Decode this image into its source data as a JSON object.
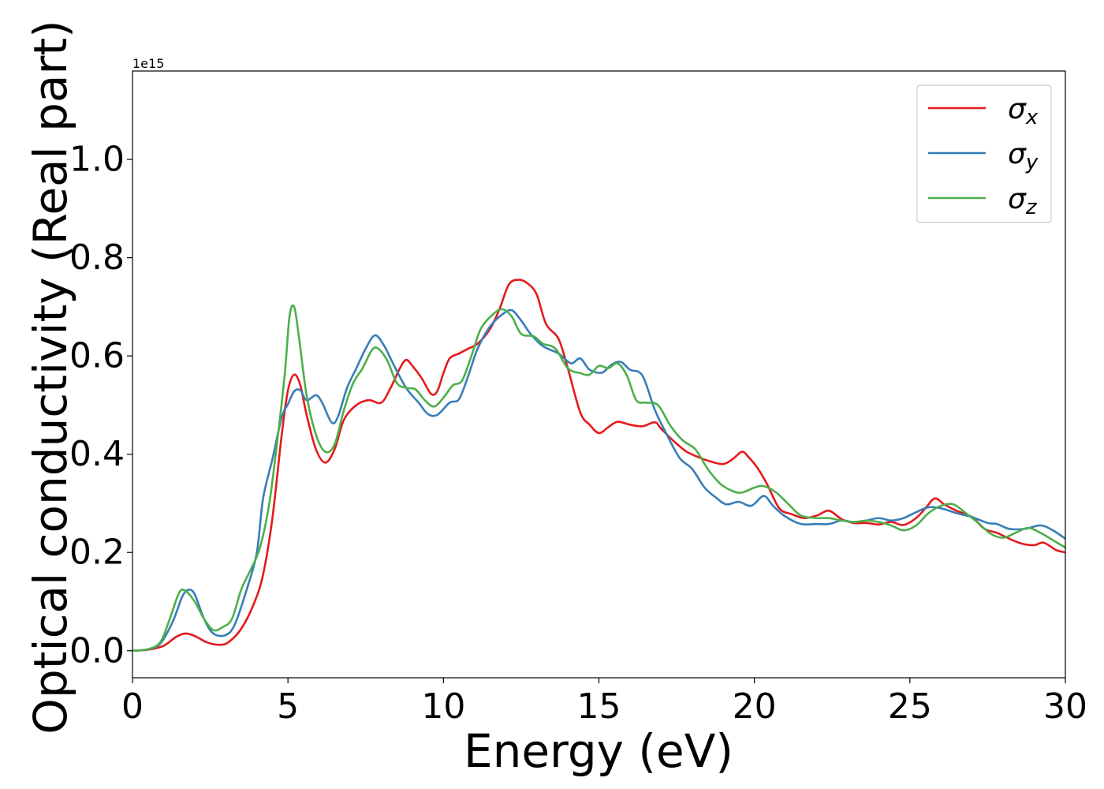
{
  "chart_data": {
    "type": "line",
    "xlabel": "Energy (eV)",
    "ylabel": "Optical conductivity (Real part)",
    "y_offset_text": "1e15",
    "xlim": [
      0,
      30
    ],
    "ylim": [
      -0.055,
      1.18
    ],
    "x_ticks": [
      0,
      5,
      10,
      15,
      20,
      25,
      30
    ],
    "x_tick_labels": [
      "0",
      "5",
      "10",
      "15",
      "20",
      "25",
      "30"
    ],
    "y_ticks": [
      0.0,
      0.2,
      0.4,
      0.6,
      0.8,
      1.0
    ],
    "y_tick_labels": [
      "0.0",
      "0.2",
      "0.4",
      "0.6",
      "0.8",
      "1.0"
    ],
    "grid": false,
    "legend_position": "top-right",
    "series": [
      {
        "name": "σx",
        "symbol": "σ",
        "subscript": "x",
        "color": "#e41a1c",
        "points": [
          [
            0,
            0
          ],
          [
            0.5,
            0.002
          ],
          [
            1.0,
            0.01
          ],
          [
            1.4,
            0.028
          ],
          [
            1.7,
            0.035
          ],
          [
            2.0,
            0.03
          ],
          [
            2.4,
            0.017
          ],
          [
            2.8,
            0.012
          ],
          [
            3.1,
            0.018
          ],
          [
            3.5,
            0.045
          ],
          [
            3.9,
            0.095
          ],
          [
            4.2,
            0.155
          ],
          [
            4.5,
            0.27
          ],
          [
            4.8,
            0.44
          ],
          [
            5.0,
            0.53
          ],
          [
            5.2,
            0.562
          ],
          [
            5.4,
            0.54
          ],
          [
            5.6,
            0.48
          ],
          [
            5.9,
            0.41
          ],
          [
            6.2,
            0.383
          ],
          [
            6.5,
            0.41
          ],
          [
            6.8,
            0.47
          ],
          [
            7.2,
            0.5
          ],
          [
            7.6,
            0.51
          ],
          [
            8.0,
            0.505
          ],
          [
            8.3,
            0.535
          ],
          [
            8.6,
            0.575
          ],
          [
            8.8,
            0.592
          ],
          [
            9.0,
            0.58
          ],
          [
            9.3,
            0.555
          ],
          [
            9.6,
            0.523
          ],
          [
            9.8,
            0.528
          ],
          [
            10.0,
            0.565
          ],
          [
            10.2,
            0.595
          ],
          [
            10.5,
            0.605
          ],
          [
            10.8,
            0.615
          ],
          [
            11.1,
            0.625
          ],
          [
            11.5,
            0.655
          ],
          [
            11.8,
            0.695
          ],
          [
            12.1,
            0.745
          ],
          [
            12.4,
            0.755
          ],
          [
            12.7,
            0.748
          ],
          [
            13.0,
            0.725
          ],
          [
            13.3,
            0.665
          ],
          [
            13.7,
            0.635
          ],
          [
            14.0,
            0.575
          ],
          [
            14.4,
            0.485
          ],
          [
            14.7,
            0.46
          ],
          [
            15.0,
            0.443
          ],
          [
            15.3,
            0.455
          ],
          [
            15.6,
            0.466
          ],
          [
            16.0,
            0.46
          ],
          [
            16.4,
            0.457
          ],
          [
            16.8,
            0.465
          ],
          [
            17.0,
            0.452
          ],
          [
            17.4,
            0.427
          ],
          [
            17.8,
            0.406
          ],
          [
            18.2,
            0.394
          ],
          [
            18.6,
            0.385
          ],
          [
            19.0,
            0.38
          ],
          [
            19.3,
            0.39
          ],
          [
            19.6,
            0.405
          ],
          [
            19.8,
            0.395
          ],
          [
            20.1,
            0.372
          ],
          [
            20.4,
            0.34
          ],
          [
            20.8,
            0.29
          ],
          [
            21.2,
            0.278
          ],
          [
            21.6,
            0.27
          ],
          [
            22.0,
            0.275
          ],
          [
            22.4,
            0.285
          ],
          [
            22.8,
            0.268
          ],
          [
            23.2,
            0.26
          ],
          [
            23.6,
            0.26
          ],
          [
            24.0,
            0.257
          ],
          [
            24.4,
            0.262
          ],
          [
            24.8,
            0.256
          ],
          [
            25.2,
            0.27
          ],
          [
            25.5,
            0.29
          ],
          [
            25.8,
            0.31
          ],
          [
            26.1,
            0.298
          ],
          [
            26.5,
            0.285
          ],
          [
            27.0,
            0.272
          ],
          [
            27.4,
            0.248
          ],
          [
            27.8,
            0.24
          ],
          [
            28.2,
            0.228
          ],
          [
            28.6,
            0.218
          ],
          [
            29.0,
            0.215
          ],
          [
            29.3,
            0.22
          ],
          [
            29.7,
            0.205
          ],
          [
            30.0,
            0.2
          ]
        ]
      },
      {
        "name": "σy",
        "symbol": "σ",
        "subscript": "y",
        "color": "#377eb8",
        "points": [
          [
            0,
            0
          ],
          [
            0.5,
            0.003
          ],
          [
            0.9,
            0.015
          ],
          [
            1.3,
            0.06
          ],
          [
            1.6,
            0.11
          ],
          [
            1.8,
            0.124
          ],
          [
            2.0,
            0.115
          ],
          [
            2.3,
            0.065
          ],
          [
            2.6,
            0.035
          ],
          [
            3.0,
            0.032
          ],
          [
            3.3,
            0.055
          ],
          [
            3.7,
            0.13
          ],
          [
            4.0,
            0.2
          ],
          [
            4.2,
            0.31
          ],
          [
            4.5,
            0.39
          ],
          [
            4.8,
            0.475
          ],
          [
            5.0,
            0.502
          ],
          [
            5.2,
            0.528
          ],
          [
            5.4,
            0.53
          ],
          [
            5.6,
            0.51
          ],
          [
            5.9,
            0.52
          ],
          [
            6.1,
            0.505
          ],
          [
            6.4,
            0.465
          ],
          [
            6.6,
            0.475
          ],
          [
            6.9,
            0.535
          ],
          [
            7.2,
            0.575
          ],
          [
            7.5,
            0.615
          ],
          [
            7.8,
            0.642
          ],
          [
            8.1,
            0.62
          ],
          [
            8.4,
            0.582
          ],
          [
            8.8,
            0.535
          ],
          [
            9.2,
            0.505
          ],
          [
            9.5,
            0.482
          ],
          [
            9.8,
            0.48
          ],
          [
            10.2,
            0.505
          ],
          [
            10.5,
            0.512
          ],
          [
            10.8,
            0.56
          ],
          [
            11.1,
            0.615
          ],
          [
            11.5,
            0.66
          ],
          [
            11.9,
            0.685
          ],
          [
            12.2,
            0.693
          ],
          [
            12.5,
            0.672
          ],
          [
            12.8,
            0.645
          ],
          [
            13.2,
            0.62
          ],
          [
            13.7,
            0.605
          ],
          [
            14.1,
            0.585
          ],
          [
            14.4,
            0.595
          ],
          [
            14.7,
            0.572
          ],
          [
            15.1,
            0.566
          ],
          [
            15.4,
            0.582
          ],
          [
            15.7,
            0.588
          ],
          [
            16.0,
            0.572
          ],
          [
            16.4,
            0.56
          ],
          [
            16.8,
            0.49
          ],
          [
            17.2,
            0.438
          ],
          [
            17.6,
            0.392
          ],
          [
            18.0,
            0.37
          ],
          [
            18.4,
            0.332
          ],
          [
            18.8,
            0.31
          ],
          [
            19.1,
            0.298
          ],
          [
            19.5,
            0.303
          ],
          [
            19.9,
            0.295
          ],
          [
            20.3,
            0.315
          ],
          [
            20.6,
            0.295
          ],
          [
            21.0,
            0.273
          ],
          [
            21.5,
            0.258
          ],
          [
            22.0,
            0.258
          ],
          [
            22.4,
            0.258
          ],
          [
            22.8,
            0.265
          ],
          [
            23.2,
            0.262
          ],
          [
            23.6,
            0.265
          ],
          [
            24.0,
            0.27
          ],
          [
            24.4,
            0.265
          ],
          [
            24.8,
            0.27
          ],
          [
            25.2,
            0.282
          ],
          [
            25.6,
            0.292
          ],
          [
            26.0,
            0.29
          ],
          [
            26.5,
            0.28
          ],
          [
            27.0,
            0.272
          ],
          [
            27.5,
            0.26
          ],
          [
            27.8,
            0.258
          ],
          [
            28.2,
            0.248
          ],
          [
            28.7,
            0.248
          ],
          [
            29.2,
            0.255
          ],
          [
            29.6,
            0.245
          ],
          [
            30.0,
            0.228
          ]
        ]
      },
      {
        "name": "σz",
        "symbol": "σ",
        "subscript": "z",
        "color": "#4daf4a",
        "points": [
          [
            0,
            0
          ],
          [
            0.5,
            0.003
          ],
          [
            0.9,
            0.018
          ],
          [
            1.2,
            0.065
          ],
          [
            1.5,
            0.118
          ],
          [
            1.7,
            0.122
          ],
          [
            2.0,
            0.1
          ],
          [
            2.3,
            0.065
          ],
          [
            2.6,
            0.042
          ],
          [
            2.9,
            0.048
          ],
          [
            3.2,
            0.065
          ],
          [
            3.5,
            0.125
          ],
          [
            3.8,
            0.165
          ],
          [
            4.1,
            0.21
          ],
          [
            4.4,
            0.3
          ],
          [
            4.7,
            0.45
          ],
          [
            4.9,
            0.565
          ],
          [
            5.05,
            0.68
          ],
          [
            5.2,
            0.7
          ],
          [
            5.35,
            0.64
          ],
          [
            5.6,
            0.52
          ],
          [
            5.9,
            0.44
          ],
          [
            6.2,
            0.405
          ],
          [
            6.5,
            0.42
          ],
          [
            6.8,
            0.49
          ],
          [
            7.1,
            0.545
          ],
          [
            7.4,
            0.575
          ],
          [
            7.7,
            0.612
          ],
          [
            7.9,
            0.615
          ],
          [
            8.2,
            0.59
          ],
          [
            8.5,
            0.545
          ],
          [
            8.8,
            0.535
          ],
          [
            9.1,
            0.532
          ],
          [
            9.4,
            0.51
          ],
          [
            9.7,
            0.497
          ],
          [
            10.0,
            0.515
          ],
          [
            10.3,
            0.54
          ],
          [
            10.6,
            0.55
          ],
          [
            10.9,
            0.6
          ],
          [
            11.2,
            0.655
          ],
          [
            11.6,
            0.685
          ],
          [
            11.9,
            0.695
          ],
          [
            12.2,
            0.68
          ],
          [
            12.5,
            0.645
          ],
          [
            12.9,
            0.64
          ],
          [
            13.2,
            0.625
          ],
          [
            13.6,
            0.615
          ],
          [
            14.0,
            0.575
          ],
          [
            14.4,
            0.565
          ],
          [
            14.7,
            0.562
          ],
          [
            15.0,
            0.58
          ],
          [
            15.3,
            0.575
          ],
          [
            15.6,
            0.585
          ],
          [
            15.9,
            0.56
          ],
          [
            16.2,
            0.51
          ],
          [
            16.5,
            0.505
          ],
          [
            16.9,
            0.5
          ],
          [
            17.3,
            0.458
          ],
          [
            17.7,
            0.428
          ],
          [
            18.1,
            0.41
          ],
          [
            18.5,
            0.37
          ],
          [
            18.9,
            0.34
          ],
          [
            19.3,
            0.325
          ],
          [
            19.6,
            0.322
          ],
          [
            20.0,
            0.332
          ],
          [
            20.3,
            0.335
          ],
          [
            20.7,
            0.322
          ],
          [
            21.1,
            0.298
          ],
          [
            21.5,
            0.275
          ],
          [
            22.0,
            0.27
          ],
          [
            22.4,
            0.27
          ],
          [
            22.8,
            0.265
          ],
          [
            23.2,
            0.262
          ],
          [
            23.6,
            0.265
          ],
          [
            24.0,
            0.262
          ],
          [
            24.4,
            0.255
          ],
          [
            24.8,
            0.245
          ],
          [
            25.2,
            0.255
          ],
          [
            25.6,
            0.28
          ],
          [
            26.0,
            0.295
          ],
          [
            26.4,
            0.298
          ],
          [
            26.8,
            0.28
          ],
          [
            27.2,
            0.26
          ],
          [
            27.6,
            0.238
          ],
          [
            28.0,
            0.23
          ],
          [
            28.4,
            0.24
          ],
          [
            28.8,
            0.25
          ],
          [
            29.2,
            0.24
          ],
          [
            29.6,
            0.225
          ],
          [
            30.0,
            0.21
          ]
        ]
      }
    ]
  }
}
